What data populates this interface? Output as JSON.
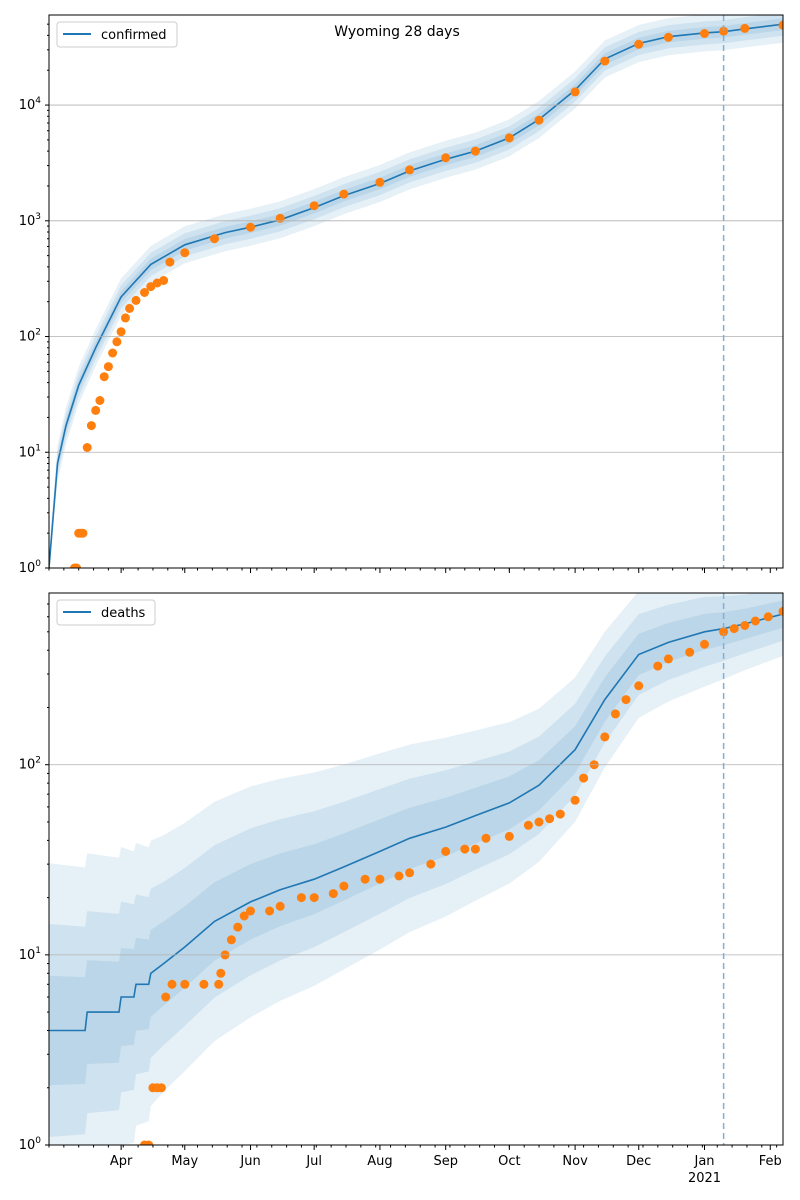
{
  "title": "Wyoming 28 days",
  "colors": {
    "model_line": "#1f77b4",
    "observed_points": "#ff7f0e",
    "band": "#1f77b4",
    "forecast_line": "#7fb0d6",
    "grid": "#b0b0b0"
  },
  "x_axis": {
    "start": "2020-02-27",
    "end": "2021-02-07",
    "forecast_start": "2021-01-10",
    "tick_labels": [
      {
        "date": "2020-04-01",
        "label": "Apr"
      },
      {
        "date": "2020-05-01",
        "label": "May"
      },
      {
        "date": "2020-06-01",
        "label": "Jun"
      },
      {
        "date": "2020-07-01",
        "label": "Jul"
      },
      {
        "date": "2020-08-01",
        "label": "Aug"
      },
      {
        "date": "2020-09-01",
        "label": "Sep"
      },
      {
        "date": "2020-10-01",
        "label": "Oct"
      },
      {
        "date": "2020-11-01",
        "label": "Nov"
      },
      {
        "date": "2020-12-01",
        "label": "Dec"
      },
      {
        "date": "2021-01-01",
        "label": "Jan"
      },
      {
        "date": "2021-02-01",
        "label": "Feb"
      }
    ],
    "year_label": "2021"
  },
  "chart_data": [
    {
      "type": "line",
      "name": "confirmed",
      "legend": "confirmed",
      "legend_position": "top-left",
      "y_scale": "log",
      "ylim": [
        1,
        60000
      ],
      "y_ticks": [
        {
          "value": 1,
          "label": "10^0"
        },
        {
          "value": 10,
          "label": "10^1"
        },
        {
          "value": 100,
          "label": "10^2"
        },
        {
          "value": 1000,
          "label": "10^3"
        },
        {
          "value": 10000,
          "label": "10^4"
        }
      ],
      "grid": "horizontal",
      "model_series": {
        "x": [
          "2020-02-27",
          "2020-03-02",
          "2020-03-06",
          "2020-03-12",
          "2020-03-20",
          "2020-04-01",
          "2020-04-15",
          "2020-05-01",
          "2020-05-20",
          "2020-06-01",
          "2020-06-15",
          "2020-07-01",
          "2020-07-15",
          "2020-08-01",
          "2020-08-15",
          "2020-09-01",
          "2020-09-15",
          "2020-10-01",
          "2020-10-15",
          "2020-11-01",
          "2020-11-15",
          "2020-12-01",
          "2020-12-15",
          "2021-01-01",
          "2021-01-10",
          "2021-01-20",
          "2021-02-07"
        ],
        "y": [
          1,
          8,
          17,
          38,
          80,
          220,
          420,
          620,
          790,
          880,
          1020,
          1300,
          1650,
          2100,
          2700,
          3400,
          4000,
          5200,
          7500,
          13500,
          25000,
          34000,
          39000,
          42000,
          43000,
          45500,
          50000
        ]
      },
      "observed_series": {
        "x": [
          "2020-03-10",
          "2020-03-11",
          "2020-03-12",
          "2020-03-13",
          "2020-03-14",
          "2020-03-16",
          "2020-03-18",
          "2020-03-20",
          "2020-03-22",
          "2020-03-24",
          "2020-03-26",
          "2020-03-28",
          "2020-03-30",
          "2020-04-01",
          "2020-04-03",
          "2020-04-05",
          "2020-04-08",
          "2020-04-12",
          "2020-04-15",
          "2020-04-18",
          "2020-04-21",
          "2020-04-24",
          "2020-05-01",
          "2020-05-15",
          "2020-06-01",
          "2020-06-15",
          "2020-07-01",
          "2020-07-15",
          "2020-08-01",
          "2020-08-15",
          "2020-09-01",
          "2020-09-15",
          "2020-10-01",
          "2020-10-15",
          "2020-11-01",
          "2020-11-15",
          "2020-12-01",
          "2020-12-15",
          "2021-01-01",
          "2021-01-10",
          "2021-01-20",
          "2021-02-07"
        ],
        "y": [
          1,
          1,
          2,
          2,
          2,
          11,
          17,
          23,
          28,
          45,
          55,
          72,
          90,
          110,
          145,
          175,
          205,
          240,
          270,
          290,
          305,
          440,
          530,
          700,
          880,
          1050,
          1350,
          1700,
          2150,
          2750,
          3500,
          4000,
          5200,
          7400,
          13000,
          24000,
          33500,
          38500,
          41500,
          43500,
          46000,
          49000
        ]
      }
    },
    {
      "type": "line",
      "name": "deaths",
      "legend": "deaths",
      "legend_position": "top-left",
      "y_scale": "log",
      "ylim": [
        1,
        800
      ],
      "y_ticks": [
        {
          "value": 1,
          "label": "10^0"
        },
        {
          "value": 10,
          "label": "10^1"
        },
        {
          "value": 100,
          "label": "10^2"
        }
      ],
      "grid": "horizontal",
      "model_series": {
        "x": [
          "2020-02-27",
          "2020-03-15",
          "2020-03-16",
          "2020-03-31",
          "2020-04-01",
          "2020-04-07",
          "2020-04-08",
          "2020-04-14",
          "2020-04-15",
          "2020-04-21",
          "2020-05-01",
          "2020-05-15",
          "2020-06-01",
          "2020-06-15",
          "2020-07-01",
          "2020-07-15",
          "2020-08-01",
          "2020-08-15",
          "2020-09-01",
          "2020-09-15",
          "2020-10-01",
          "2020-10-15",
          "2020-11-01",
          "2020-11-15",
          "2020-12-01",
          "2020-12-15",
          "2021-01-01",
          "2021-01-10",
          "2021-01-20",
          "2021-02-07"
        ],
        "y": [
          4,
          4,
          5,
          5,
          6,
          6,
          7,
          7,
          8,
          9,
          11,
          15,
          19,
          22,
          25,
          29,
          35,
          41,
          47,
          54,
          63,
          78,
          120,
          220,
          380,
          440,
          500,
          520,
          550,
          620
        ]
      },
      "observed_series": {
        "x": [
          "2020-04-12",
          "2020-04-14",
          "2020-04-16",
          "2020-04-18",
          "2020-04-20",
          "2020-04-22",
          "2020-04-25",
          "2020-05-01",
          "2020-05-10",
          "2020-05-17",
          "2020-05-18",
          "2020-05-20",
          "2020-05-23",
          "2020-05-26",
          "2020-05-29",
          "2020-06-01",
          "2020-06-10",
          "2020-06-15",
          "2020-06-25",
          "2020-07-01",
          "2020-07-10",
          "2020-07-15",
          "2020-07-25",
          "2020-08-01",
          "2020-08-10",
          "2020-08-15",
          "2020-08-25",
          "2020-09-01",
          "2020-09-10",
          "2020-09-15",
          "2020-09-20",
          "2020-10-01",
          "2020-10-10",
          "2020-10-15",
          "2020-10-20",
          "2020-10-25",
          "2020-11-01",
          "2020-11-05",
          "2020-11-10",
          "2020-11-15",
          "2020-11-20",
          "2020-11-25",
          "2020-12-01",
          "2020-12-10",
          "2020-12-15",
          "2020-12-25",
          "2021-01-01",
          "2021-01-10",
          "2021-01-15",
          "2021-01-20",
          "2021-01-25",
          "2021-01-31",
          "2021-02-07"
        ],
        "y": [
          1,
          1,
          2,
          2,
          2,
          6,
          7,
          7,
          7,
          7,
          8,
          10,
          12,
          14,
          16,
          17,
          17,
          18,
          20,
          20,
          21,
          23,
          25,
          25,
          26,
          27,
          30,
          35,
          36,
          36,
          41,
          42,
          48,
          50,
          52,
          55,
          65,
          85,
          100,
          140,
          185,
          220,
          260,
          330,
          360,
          390,
          430,
          500,
          520,
          540,
          570,
          600,
          640
        ]
      }
    }
  ]
}
